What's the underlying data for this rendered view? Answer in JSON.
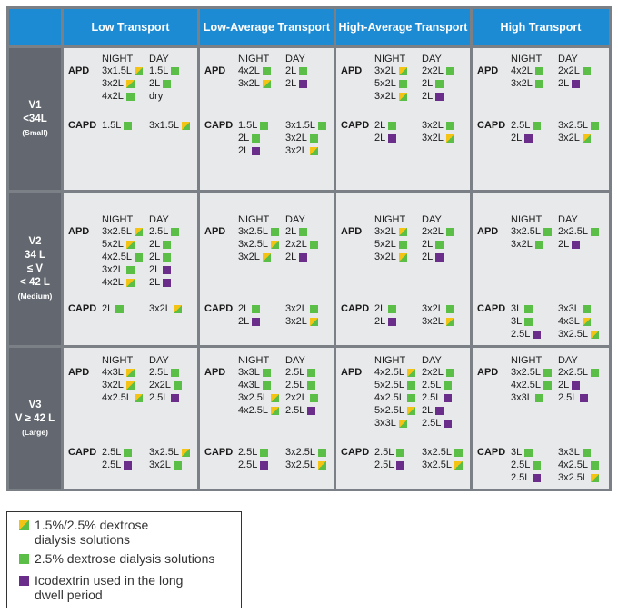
{
  "headers": [
    "Low Transport",
    "Low-Average Transport",
    "High-Average Transport",
    "High Transport"
  ],
  "rows": [
    {
      "lines": [
        "V1",
        "<34L"
      ],
      "sub": "(Small)"
    },
    {
      "lines": [
        "V2",
        "34 L",
        "≤ V",
        "< 42 L"
      ],
      "sub": "(Medium)"
    },
    {
      "lines": [
        "V3",
        "V ≥ 42 L"
      ],
      "sub": "(Large)"
    }
  ],
  "labels": {
    "apd": "APD",
    "capd": "CAPD",
    "night": "NIGHT",
    "day": "DAY"
  },
  "legend": [
    {
      "type": "mixed",
      "lines": [
        "1.5%/2.5% dextrose",
        "dialysis solutions"
      ]
    },
    {
      "type": "green",
      "lines": [
        "2.5% dextrose dialysis solutions"
      ]
    },
    {
      "type": "purple",
      "lines": [
        "Icodextrin used in the long",
        "dwell period"
      ]
    }
  ],
  "colors": {
    "header": "#1c8bd4",
    "row_label": "#636870",
    "cell": "#e8e9eb",
    "green": "#5bbf47",
    "yellow": "#f5c313",
    "purple": "#6b2d8a"
  },
  "cells": [
    [
      {
        "apd_night": [
          [
            "3x1.5L",
            "mixed"
          ],
          [
            "3x2L",
            "mixed"
          ],
          [
            "4x2L",
            "green"
          ]
        ],
        "apd_day": [
          [
            "1.5L",
            "green"
          ],
          [
            "2L",
            "green"
          ],
          [
            "dry",
            ""
          ]
        ],
        "capd_night": [
          [
            "1.5L",
            "green"
          ]
        ],
        "capd_day": [
          [
            "3x1.5L",
            "mixed"
          ]
        ]
      },
      {
        "apd_night": [
          [
            "4x2L",
            "green"
          ],
          [
            "3x2L",
            "mixed"
          ]
        ],
        "apd_day": [
          [
            "2L",
            "green"
          ],
          [
            "2L",
            "purple"
          ]
        ],
        "capd_night": [
          [
            "1.5L",
            "green"
          ],
          [
            "2L",
            "green"
          ],
          [
            "2L",
            "purple"
          ]
        ],
        "capd_day": [
          [
            "3x1.5L",
            "green"
          ],
          [
            "3x2L",
            "green"
          ],
          [
            "3x2L",
            "mixed"
          ]
        ]
      },
      {
        "apd_night": [
          [
            "3x2L",
            "mixed"
          ],
          [
            "5x2L",
            "green"
          ],
          [
            "3x2L",
            "mixed"
          ]
        ],
        "apd_day": [
          [
            "2x2L",
            "green"
          ],
          [
            "2L",
            "green"
          ],
          [
            "2L",
            "purple"
          ]
        ],
        "capd_night": [
          [
            "2L",
            "green"
          ],
          [
            "2L",
            "purple"
          ]
        ],
        "capd_day": [
          [
            "3x2L",
            "green"
          ],
          [
            "3x2L",
            "mixed"
          ]
        ]
      },
      {
        "apd_night": [
          [
            "4x2L",
            "green"
          ],
          [
            "3x2L",
            "green"
          ]
        ],
        "apd_day": [
          [
            "2x2L",
            "green"
          ],
          [
            "2L",
            "purple"
          ]
        ],
        "capd_night": [
          [
            "2.5L",
            "green"
          ],
          [
            "2L",
            "purple"
          ]
        ],
        "capd_day": [
          [
            "3x2.5L",
            "green"
          ],
          [
            "3x2L",
            "mixed"
          ]
        ]
      }
    ],
    [
      {
        "apd_night": [
          [
            "3x2.5L",
            "mixed"
          ],
          [
            "5x2L",
            "mixed"
          ],
          [
            "4x2.5L",
            "green"
          ],
          [
            "3x2L",
            "green"
          ],
          [
            "4x2L",
            "mixed"
          ]
        ],
        "apd_day": [
          [
            "2.5L",
            "green"
          ],
          [
            "2L",
            "green"
          ],
          [
            "2L",
            "green"
          ],
          [
            "2L",
            "purple"
          ],
          [
            "2L",
            "purple"
          ]
        ],
        "capd_night": [
          [
            "2L",
            "green"
          ]
        ],
        "capd_day": [
          [
            "3x2L",
            "mixed"
          ]
        ]
      },
      {
        "apd_night": [
          [
            "3x2.5L",
            "green"
          ],
          [
            "3x2.5L",
            "mixed"
          ],
          [
            "3x2L",
            "mixed"
          ]
        ],
        "apd_day": [
          [
            "2L",
            "green"
          ],
          [
            "2x2L",
            "green"
          ],
          [
            "2L",
            "purple"
          ]
        ],
        "capd_night": [
          [
            "2L",
            "green"
          ],
          [
            "2L",
            "purple"
          ]
        ],
        "capd_day": [
          [
            "3x2L",
            "green"
          ],
          [
            "3x2L",
            "mixed"
          ]
        ]
      },
      {
        "apd_night": [
          [
            "3x2L",
            "mixed"
          ],
          [
            "5x2L",
            "green"
          ],
          [
            "3x2L",
            "mixed"
          ]
        ],
        "apd_day": [
          [
            "2x2L",
            "green"
          ],
          [
            "2L",
            "green"
          ],
          [
            "2L",
            "purple"
          ]
        ],
        "capd_night": [
          [
            "2L",
            "green"
          ],
          [
            "2L",
            "purple"
          ]
        ],
        "capd_day": [
          [
            "3x2L",
            "green"
          ],
          [
            "3x2L",
            "mixed"
          ]
        ]
      },
      {
        "apd_night": [
          [
            "3x2.5L",
            "green"
          ],
          [
            "3x2L",
            "green"
          ]
        ],
        "apd_day": [
          [
            "2x2.5L",
            "green"
          ],
          [
            "2L",
            "purple"
          ]
        ],
        "capd_night": [
          [
            "3L",
            "green"
          ],
          [
            "3L",
            "green"
          ],
          [
            "2.5L",
            "purple"
          ]
        ],
        "capd_day": [
          [
            "3x3L",
            "green"
          ],
          [
            "4x3L",
            "mixed"
          ],
          [
            "3x2.5L",
            "mixed"
          ]
        ]
      }
    ],
    [
      {
        "apd_night": [
          [
            "4x3L",
            "mixed"
          ],
          [
            "3x2L",
            "mixed"
          ],
          [
            "4x2.5L",
            "mixed"
          ]
        ],
        "apd_day": [
          [
            "2.5L",
            "green"
          ],
          [
            "2x2L",
            "green"
          ],
          [
            "2.5L",
            "purple"
          ]
        ],
        "capd_night": [
          [
            "2.5L",
            "green"
          ],
          [
            "2.5L",
            "purple"
          ]
        ],
        "capd_day": [
          [
            "3x2.5L",
            "mixed"
          ],
          [
            "3x2L",
            "green"
          ]
        ]
      },
      {
        "apd_night": [
          [
            "3x3L",
            "green"
          ],
          [
            "4x3L",
            "green"
          ],
          [
            "3x2.5L",
            "mixed"
          ],
          [
            "4x2.5L",
            "mixed"
          ]
        ],
        "apd_day": [
          [
            "2.5L",
            "green"
          ],
          [
            "2.5L",
            "green"
          ],
          [
            "2x2L",
            "green"
          ],
          [
            "2.5L",
            "purple"
          ]
        ],
        "capd_night": [
          [
            "2.5L",
            "green"
          ],
          [
            "2.5L",
            "purple"
          ]
        ],
        "capd_day": [
          [
            "3x2.5L",
            "green"
          ],
          [
            "3x2.5L",
            "mixed"
          ]
        ]
      },
      {
        "apd_night": [
          [
            "4x2.5L",
            "mixed"
          ],
          [
            "5x2.5L",
            "green"
          ],
          [
            "4x2.5L",
            "green"
          ],
          [
            "5x2.5L",
            "mixed"
          ],
          [
            "3x3L",
            "mixed"
          ]
        ],
        "apd_day": [
          [
            "2x2L",
            "green"
          ],
          [
            "2.5L",
            "green"
          ],
          [
            "2.5L",
            "purple"
          ],
          [
            "2L",
            "purple"
          ],
          [
            "2.5L",
            "purple"
          ]
        ],
        "capd_night": [
          [
            "2.5L",
            "green"
          ],
          [
            "2.5L",
            "purple"
          ]
        ],
        "capd_day": [
          [
            "3x2.5L",
            "green"
          ],
          [
            "3x2.5L",
            "mixed"
          ]
        ]
      },
      {
        "apd_night": [
          [
            "3x2.5L",
            "green"
          ],
          [
            "4x2.5L",
            "green"
          ],
          [
            "3x3L",
            "green"
          ]
        ],
        "apd_day": [
          [
            "2x2.5L",
            "green"
          ],
          [
            "2L",
            "purple"
          ],
          [
            "2.5L",
            "purple"
          ]
        ],
        "capd_night": [
          [
            "3L",
            "green"
          ],
          [
            "2.5L",
            "green"
          ],
          [
            "2.5L",
            "purple"
          ]
        ],
        "capd_day": [
          [
            "3x3L",
            "green"
          ],
          [
            "4x2.5L",
            "green"
          ],
          [
            "3x2.5L",
            "mixed"
          ]
        ]
      }
    ]
  ]
}
